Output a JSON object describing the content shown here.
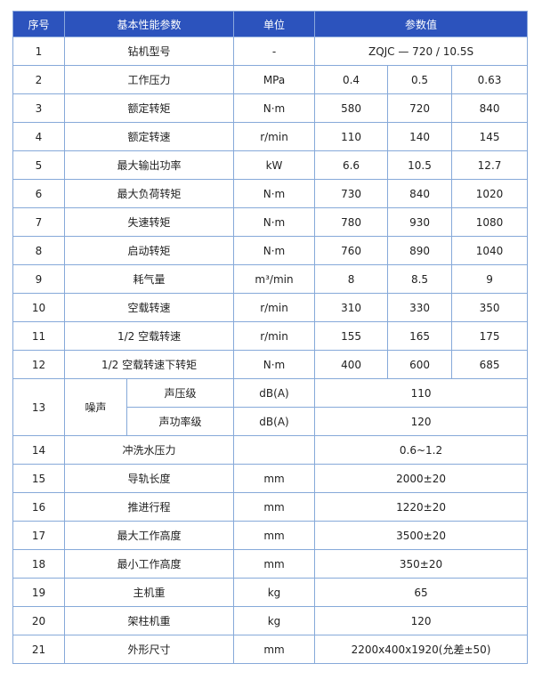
{
  "header": {
    "no": "序号",
    "param": "基本性能参数",
    "unit": "单位",
    "value": "参数值"
  },
  "colors": {
    "header_bg": "#2c53bd",
    "border": "#86a9d9"
  },
  "rows": [
    {
      "no": "1",
      "param": "钻机型号",
      "unit": "-",
      "values": [
        "ZQJC — 720 / 10.5S"
      ]
    },
    {
      "no": "2",
      "param": "工作压力",
      "unit": "MPa",
      "values": [
        "0.4",
        "0.5",
        "0.63"
      ]
    },
    {
      "no": "3",
      "param": "额定转矩",
      "unit": "N·m",
      "values": [
        "580",
        "720",
        "840"
      ]
    },
    {
      "no": "4",
      "param": "额定转速",
      "unit": "r/min",
      "values": [
        "110",
        "140",
        "145"
      ]
    },
    {
      "no": "5",
      "param": "最大输出功率",
      "unit": "kW",
      "values": [
        "6.6",
        "10.5",
        "12.7"
      ]
    },
    {
      "no": "6",
      "param": "最大负荷转矩",
      "unit": "N·m",
      "values": [
        "730",
        "840",
        "1020"
      ]
    },
    {
      "no": "7",
      "param": "失速转矩",
      "unit": "N·m",
      "values": [
        "780",
        "930",
        "1080"
      ]
    },
    {
      "no": "8",
      "param": "启动转矩",
      "unit": "N·m",
      "values": [
        "760",
        "890",
        "1040"
      ]
    },
    {
      "no": "9",
      "param": "耗气量",
      "unit": "m³/min",
      "values": [
        "8",
        "8.5",
        "9"
      ]
    },
    {
      "no": "10",
      "param": "空载转速",
      "unit": "r/min",
      "values": [
        "310",
        "330",
        "350"
      ]
    },
    {
      "no": "11",
      "param": "1/2 空载转速",
      "unit": "r/min",
      "values": [
        "155",
        "165",
        "175"
      ]
    },
    {
      "no": "12",
      "param": "1/2 空载转速下转矩",
      "unit": "N·m",
      "values": [
        "400",
        "600",
        "685"
      ]
    }
  ],
  "noise": {
    "no": "13",
    "param": "噪声",
    "sub": [
      {
        "param": "声压级",
        "unit": "dB(A)",
        "value": "110"
      },
      {
        "param": "声功率级",
        "unit": "dB(A)",
        "value": "120"
      }
    ]
  },
  "rows2": [
    {
      "no": "14",
      "param": "冲洗水压力",
      "unit": "",
      "value": "0.6~1.2"
    },
    {
      "no": "15",
      "param": "导轨长度",
      "unit": "mm",
      "value": "2000±20"
    },
    {
      "no": "16",
      "param": "推进行程",
      "unit": "mm",
      "value": "1220±20"
    },
    {
      "no": "17",
      "param": "最大工作高度",
      "unit": "mm",
      "value": "3500±20"
    },
    {
      "no": "18",
      "param": "最小工作高度",
      "unit": "mm",
      "value": "350±20"
    },
    {
      "no": "19",
      "param": "主机重",
      "unit": "kg",
      "value": "65"
    },
    {
      "no": "20",
      "param": "架柱机重",
      "unit": "kg",
      "value": "120"
    },
    {
      "no": "21",
      "param": "外形尺寸",
      "unit": "mm",
      "value": "2200x400x1920(允差±50)"
    }
  ]
}
